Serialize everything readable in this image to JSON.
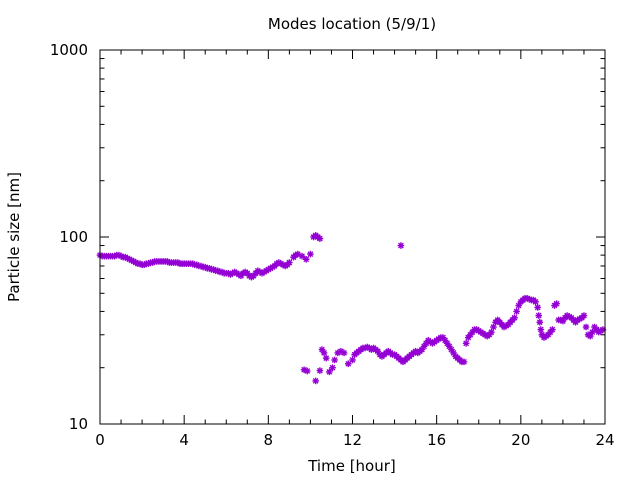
{
  "chart_data": {
    "type": "scatter",
    "title": "Modes location (5/9/1)",
    "xlabel": "Time [hour]",
    "ylabel": "Particle size [nm]",
    "xlim": [
      0,
      24
    ],
    "ylim": [
      10,
      1000
    ],
    "yscale": "log",
    "xticks": [
      0,
      4,
      8,
      12,
      16,
      20,
      24
    ],
    "xtick_labels": [
      "0",
      "4",
      "8",
      "12",
      "16",
      "20",
      "24"
    ],
    "yticks": [
      10,
      100,
      1000
    ],
    "ytick_labels": [
      "10",
      "100",
      "1000"
    ],
    "grid": false,
    "legend": "none",
    "marker_color": "#9400d3",
    "series": [
      {
        "points": [
          [
            0.0,
            80
          ],
          [
            0.1,
            79
          ],
          [
            0.2,
            79
          ],
          [
            0.3,
            79
          ],
          [
            0.4,
            79
          ],
          [
            0.5,
            79
          ],
          [
            0.6,
            79
          ],
          [
            0.7,
            79
          ],
          [
            0.8,
            80
          ],
          [
            0.9,
            80
          ],
          [
            1.0,
            79
          ],
          [
            1.1,
            78
          ],
          [
            1.2,
            78
          ],
          [
            1.3,
            77
          ],
          [
            1.4,
            76
          ],
          [
            1.5,
            75
          ],
          [
            1.6,
            74
          ],
          [
            1.7,
            73
          ],
          [
            1.8,
            72
          ],
          [
            1.9,
            72
          ],
          [
            2.0,
            71
          ],
          [
            2.1,
            71
          ],
          [
            2.2,
            72
          ],
          [
            2.3,
            72
          ],
          [
            2.4,
            73
          ],
          [
            2.5,
            73
          ],
          [
            2.6,
            74
          ],
          [
            2.7,
            74
          ],
          [
            2.8,
            74
          ],
          [
            2.9,
            74
          ],
          [
            3.0,
            74
          ],
          [
            3.1,
            74
          ],
          [
            3.2,
            74
          ],
          [
            3.3,
            73
          ],
          [
            3.4,
            73
          ],
          [
            3.5,
            73
          ],
          [
            3.6,
            73
          ],
          [
            3.7,
            73
          ],
          [
            3.8,
            72
          ],
          [
            3.9,
            72
          ],
          [
            4.0,
            72
          ],
          [
            4.1,
            72
          ],
          [
            4.2,
            72
          ],
          [
            4.3,
            72
          ],
          [
            4.4,
            72
          ],
          [
            4.5,
            71
          ],
          [
            4.6,
            71
          ],
          [
            4.7,
            70
          ],
          [
            4.8,
            70
          ],
          [
            4.9,
            69
          ],
          [
            5.0,
            69
          ],
          [
            5.1,
            68
          ],
          [
            5.2,
            68
          ],
          [
            5.3,
            67
          ],
          [
            5.4,
            67
          ],
          [
            5.5,
            66
          ],
          [
            5.6,
            66
          ],
          [
            5.7,
            65
          ],
          [
            5.8,
            65
          ],
          [
            5.9,
            64
          ],
          [
            6.0,
            64
          ],
          [
            6.1,
            64
          ],
          [
            6.2,
            63
          ],
          [
            6.3,
            64
          ],
          [
            6.4,
            65
          ],
          [
            6.5,
            64
          ],
          [
            6.6,
            63
          ],
          [
            6.7,
            62
          ],
          [
            6.8,
            64
          ],
          [
            6.9,
            65
          ],
          [
            7.0,
            64
          ],
          [
            7.1,
            62
          ],
          [
            7.2,
            61
          ],
          [
            7.3,
            62
          ],
          [
            7.4,
            64
          ],
          [
            7.5,
            66
          ],
          [
            7.6,
            65
          ],
          [
            7.7,
            64
          ],
          [
            7.8,
            65
          ],
          [
            7.9,
            66
          ],
          [
            8.0,
            67
          ],
          [
            8.1,
            68
          ],
          [
            8.2,
            69
          ],
          [
            8.3,
            70
          ],
          [
            8.4,
            72
          ],
          [
            8.5,
            73
          ],
          [
            8.6,
            72
          ],
          [
            8.7,
            71
          ],
          [
            8.8,
            70
          ],
          [
            8.9,
            71
          ],
          [
            9.0,
            73
          ],
          [
            9.2,
            78
          ],
          [
            9.3,
            80
          ],
          [
            9.4,
            81
          ],
          [
            9.6,
            79
          ],
          [
            9.8,
            76
          ],
          [
            10.0,
            81
          ],
          [
            10.15,
            100
          ],
          [
            10.25,
            102
          ],
          [
            10.35,
            100
          ],
          [
            10.45,
            98
          ],
          [
            14.3,
            90
          ],
          [
            9.7,
            19.5
          ],
          [
            9.85,
            19.2
          ],
          [
            10.25,
            17
          ],
          [
            10.45,
            19.3
          ],
          [
            10.55,
            25
          ],
          [
            10.65,
            24
          ],
          [
            10.75,
            22.5
          ],
          [
            10.9,
            19
          ],
          [
            11.05,
            20
          ],
          [
            11.15,
            22
          ],
          [
            11.3,
            24
          ],
          [
            11.45,
            24.5
          ],
          [
            11.6,
            24
          ],
          [
            11.8,
            21
          ],
          [
            12.0,
            22
          ],
          [
            12.1,
            23.5
          ],
          [
            12.2,
            24
          ],
          [
            12.3,
            24.5
          ],
          [
            12.4,
            25
          ],
          [
            12.5,
            25.5
          ],
          [
            12.6,
            25.5
          ],
          [
            12.7,
            25.8
          ],
          [
            12.8,
            25.5
          ],
          [
            12.9,
            25
          ],
          [
            13.0,
            25.5
          ],
          [
            13.1,
            25
          ],
          [
            13.2,
            24.5
          ],
          [
            13.3,
            23.5
          ],
          [
            13.4,
            23
          ],
          [
            13.5,
            23.5
          ],
          [
            13.6,
            24
          ],
          [
            13.7,
            24.5
          ],
          [
            13.8,
            24
          ],
          [
            13.9,
            23.5
          ],
          [
            14.0,
            23.5
          ],
          [
            14.1,
            23
          ],
          [
            14.2,
            22.5
          ],
          [
            14.3,
            22
          ],
          [
            14.4,
            21.5
          ],
          [
            14.5,
            22
          ],
          [
            14.6,
            22.5
          ],
          [
            14.7,
            23
          ],
          [
            14.8,
            23.5
          ],
          [
            14.9,
            24
          ],
          [
            15.0,
            24.5
          ],
          [
            15.1,
            24
          ],
          [
            15.2,
            24.5
          ],
          [
            15.3,
            25
          ],
          [
            15.4,
            26
          ],
          [
            15.5,
            27
          ],
          [
            15.6,
            28
          ],
          [
            15.7,
            27.5
          ],
          [
            15.8,
            27
          ],
          [
            15.9,
            27.5
          ],
          [
            16.0,
            28
          ],
          [
            16.1,
            28.5
          ],
          [
            16.2,
            29
          ],
          [
            16.3,
            29
          ],
          [
            16.4,
            28
          ],
          [
            16.5,
            27
          ],
          [
            16.6,
            26
          ],
          [
            16.7,
            25
          ],
          [
            16.8,
            24
          ],
          [
            16.9,
            23
          ],
          [
            17.0,
            22.5
          ],
          [
            17.1,
            22
          ],
          [
            17.2,
            21.5
          ],
          [
            17.3,
            21.5
          ],
          [
            17.4,
            27
          ],
          [
            17.5,
            29
          ],
          [
            17.6,
            30
          ],
          [
            17.7,
            31
          ],
          [
            17.8,
            32
          ],
          [
            17.9,
            32
          ],
          [
            18.0,
            31.5
          ],
          [
            18.1,
            31
          ],
          [
            18.2,
            30.5
          ],
          [
            18.3,
            30
          ],
          [
            18.4,
            29.5
          ],
          [
            18.5,
            30
          ],
          [
            18.6,
            31
          ],
          [
            18.7,
            33
          ],
          [
            18.8,
            35
          ],
          [
            18.9,
            36
          ],
          [
            19.0,
            35
          ],
          [
            19.1,
            34
          ],
          [
            19.2,
            33
          ],
          [
            19.3,
            33.5
          ],
          [
            19.4,
            34
          ],
          [
            19.5,
            35
          ],
          [
            19.6,
            36
          ],
          [
            19.7,
            37
          ],
          [
            19.8,
            40
          ],
          [
            19.9,
            43
          ],
          [
            20.0,
            45
          ],
          [
            20.1,
            46
          ],
          [
            20.2,
            47
          ],
          [
            20.3,
            47
          ],
          [
            20.4,
            46.5
          ],
          [
            20.5,
            46
          ],
          [
            20.6,
            46
          ],
          [
            20.7,
            45
          ],
          [
            20.8,
            42
          ],
          [
            20.85,
            38
          ],
          [
            20.9,
            35
          ],
          [
            20.95,
            32
          ],
          [
            21.0,
            30
          ],
          [
            21.1,
            29
          ],
          [
            21.2,
            29.5
          ],
          [
            21.3,
            30
          ],
          [
            21.4,
            31
          ],
          [
            21.5,
            32
          ],
          [
            21.6,
            43
          ],
          [
            21.7,
            44
          ],
          [
            21.8,
            36
          ],
          [
            21.9,
            36
          ],
          [
            22.0,
            35.5
          ],
          [
            22.1,
            37
          ],
          [
            22.2,
            38
          ],
          [
            22.3,
            37.5
          ],
          [
            22.4,
            37
          ],
          [
            22.5,
            36
          ],
          [
            22.6,
            35
          ],
          [
            22.7,
            36
          ],
          [
            22.8,
            36.5
          ],
          [
            22.9,
            37
          ],
          [
            23.0,
            38
          ],
          [
            23.1,
            33
          ],
          [
            23.2,
            30
          ],
          [
            23.3,
            29.5
          ],
          [
            23.4,
            31
          ],
          [
            23.5,
            33
          ],
          [
            23.6,
            32
          ],
          [
            23.7,
            31
          ],
          [
            23.8,
            31.5
          ],
          [
            23.9,
            32
          ]
        ]
      }
    ]
  }
}
